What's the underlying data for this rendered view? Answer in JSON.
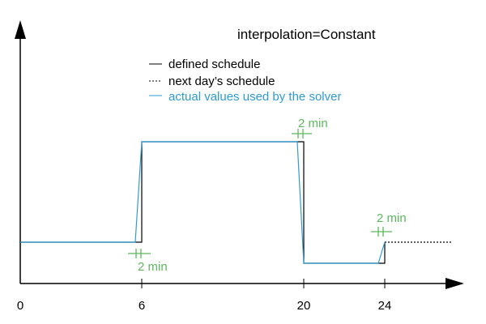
{
  "title": "interpolation=Constant",
  "legend": [
    {
      "line_style": "solid",
      "label": "defined schedule",
      "color": "#000000"
    },
    {
      "line_style": "dotted",
      "label": "next day’s schedule",
      "color": "#000000"
    },
    {
      "line_style": "solid",
      "label": "actual values used by the solver",
      "color": "#2e9bd6"
    }
  ],
  "x_ticks": [
    "0",
    "6",
    "20",
    "24"
  ],
  "duration_labels": [
    "2 min",
    "2 min",
    "2 min"
  ],
  "colors": {
    "defined": "#000000",
    "solver": "#2e9bd6",
    "duration": "#5cb85c",
    "axis": "#000000"
  },
  "chart_data": {
    "type": "line",
    "x_ticks": [
      0,
      6,
      20,
      24
    ],
    "levels": {
      "low": 1,
      "high": 3
    },
    "defined_schedule": [
      {
        "x": 0,
        "y": 1
      },
      {
        "x": 6,
        "y": 1
      },
      {
        "x": 6,
        "y": 3
      },
      {
        "x": 20,
        "y": 3
      },
      {
        "x": 20,
        "y": 0.6
      },
      {
        "x": 24,
        "y": 0.6
      },
      {
        "x": 24,
        "y": 1
      }
    ],
    "next_day_schedule": [
      {
        "x": 24,
        "y": 1
      },
      {
        "x": 27.3,
        "y": 1
      }
    ],
    "solver_values": [
      {
        "x": 0,
        "y": 1
      },
      {
        "x": 6,
        "y": 1
      },
      {
        "x": 6,
        "y": 3
      },
      {
        "x": 20,
        "y": 3
      },
      {
        "x": 20,
        "y": 0.6
      },
      {
        "x": 24,
        "y": 0.6
      },
      {
        "x": 24,
        "y": 1
      }
    ]
  }
}
